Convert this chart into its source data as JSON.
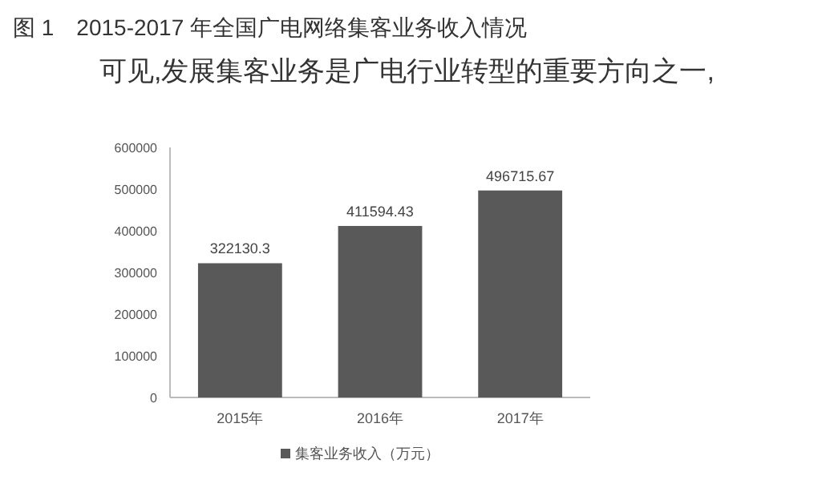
{
  "chart_data": {
    "type": "bar",
    "title": "图 1　2015-2017 年全国广电网络集客业务收入情况",
    "annotations": [
      "可见,发展集客业务是广电行业转型的重要方向之一,"
    ],
    "categories": [
      "2015年",
      "2016年",
      "2017年"
    ],
    "series": [
      {
        "name": "集客业务收入（万元）",
        "color": "#595959",
        "values": [
          322130.3,
          411594.43,
          496715.67
        ]
      }
    ],
    "ylim": [
      0,
      600000
    ],
    "yticks": [
      0,
      100000,
      200000,
      300000,
      400000,
      500000,
      600000
    ],
    "data_labels": true,
    "grid": false,
    "legend": "bottom"
  }
}
